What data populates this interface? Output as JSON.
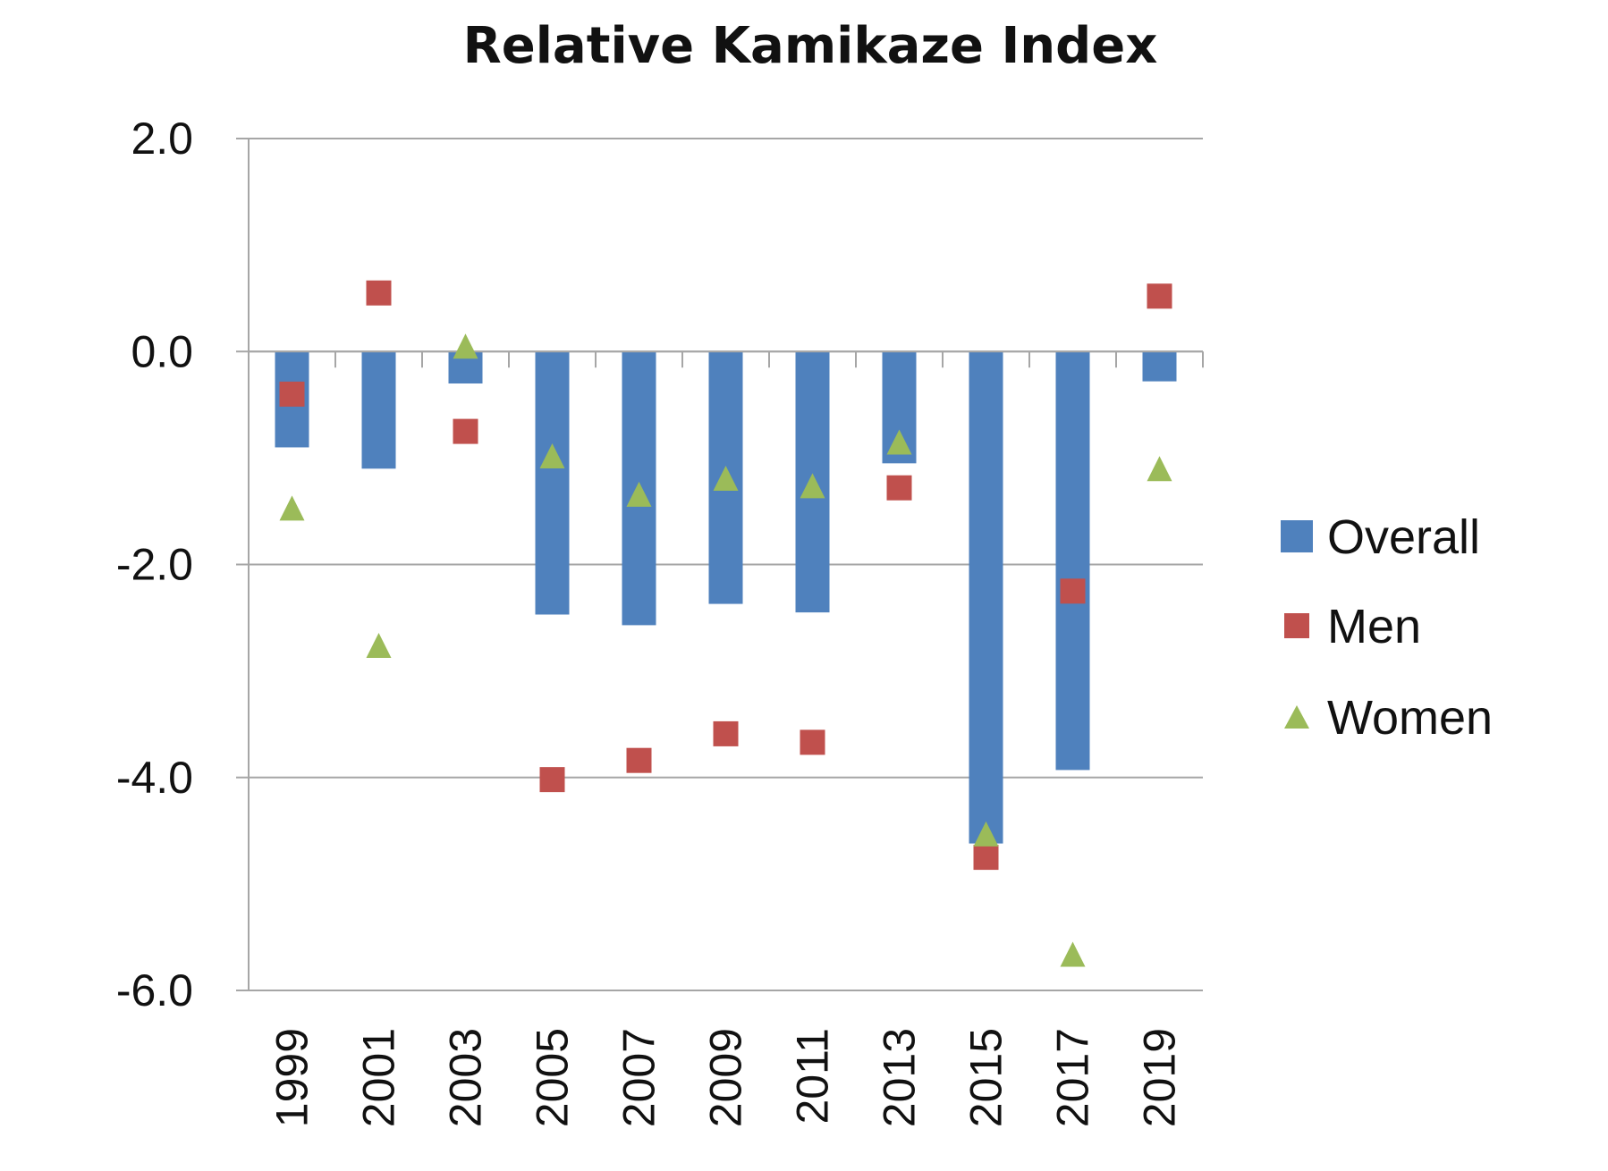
{
  "chart_data": {
    "type": "bar",
    "title": "Relative Kamikaze Index",
    "xlabel": "",
    "ylabel": "",
    "categories": [
      "1999",
      "2001",
      "2003",
      "2005",
      "2007",
      "2009",
      "2011",
      "2013",
      "2015",
      "2017",
      "2019"
    ],
    "ylim": [
      -6.0,
      2.0
    ],
    "yticks": [
      "2.0",
      "0.0",
      "-2.0",
      "-4.0",
      "-6.0"
    ],
    "ytick_values": [
      2.0,
      0.0,
      -2.0,
      -4.0,
      -6.0
    ],
    "grid": true,
    "legend_position": "right",
    "series": [
      {
        "name": "Overall",
        "type": "bar",
        "marker": "square",
        "color": "#4F81BD",
        "values": [
          -0.9,
          -1.1,
          -0.3,
          -2.47,
          -2.57,
          -2.37,
          -2.45,
          -1.05,
          -4.62,
          -3.93,
          -0.28
        ]
      },
      {
        "name": "Men",
        "type": "scatter",
        "marker": "square",
        "color": "#C0504D",
        "values": [
          -0.4,
          0.55,
          -0.75,
          -4.02,
          -3.84,
          -3.59,
          -3.67,
          -1.28,
          -4.75,
          -2.25,
          0.52
        ]
      },
      {
        "name": "Women",
        "type": "scatter",
        "marker": "triangle",
        "color": "#9BBB59",
        "values": [
          -1.47,
          -2.76,
          0.05,
          -0.98,
          -1.34,
          -1.19,
          -1.26,
          -0.85,
          -4.53,
          -5.66,
          -1.1
        ]
      }
    ]
  }
}
